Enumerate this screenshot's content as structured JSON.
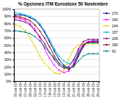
{
  "chart_data": {
    "type": "line",
    "title": "% Opciones ITM Eurostoxx 50 Noviembre",
    "categories": [
      "05-oct-09",
      "06-oct-09",
      "07-oct-09",
      "08-oct-09",
      "09-oct-09",
      "12-oct-09",
      "13-oct-09",
      "14-oct-09",
      "15-oct-09",
      "16-oct-09",
      "19-oct-09",
      "20-oct-09",
      "21-oct-09",
      "22-oct-09",
      "23-oct-09",
      "26-oct-09",
      "27-oct-09",
      "28-oct-09"
    ],
    "series": [
      {
        "name": "270",
        "color": "#000080",
        "marker": "circle",
        "values": [
          92,
          92,
          91,
          88,
          85,
          78,
          68,
          55,
          42,
          30,
          22,
          18,
          20,
          35,
          48,
          55,
          56,
          56
        ]
      },
      {
        "name": "163",
        "color": "#ff00ff",
        "marker": "circle",
        "values": [
          88,
          87,
          85,
          80,
          72,
          60,
          45,
          32,
          22,
          15,
          12,
          14,
          25,
          42,
          52,
          55,
          55,
          55
        ]
      },
      {
        "name": "244",
        "color": "#e0d000",
        "marker": "circle",
        "values": [
          78,
          76,
          70,
          60,
          48,
          35,
          25,
          18,
          12,
          10,
          15,
          30,
          45,
          50,
          52,
          52,
          52,
          52
        ]
      },
      {
        "name": "157",
        "color": "#00c0e0",
        "marker": "circle",
        "values": [
          95,
          94,
          92,
          90,
          86,
          80,
          70,
          58,
          45,
          35,
          28,
          24,
          28,
          40,
          50,
          53,
          53,
          53
        ]
      },
      {
        "name": "205",
        "color": "#800080",
        "marker": "circle",
        "values": [
          85,
          84,
          82,
          78,
          70,
          62,
          52,
          40,
          30,
          22,
          18,
          20,
          30,
          45,
          55,
          58,
          58,
          58
        ]
      },
      {
        "name": "290",
        "color": "#800000",
        "marker": "circle",
        "values": [
          90,
          89,
          87,
          84,
          78,
          70,
          60,
          48,
          35,
          25,
          20,
          16,
          22,
          38,
          50,
          54,
          54,
          54
        ]
      },
      {
        "name": "62",
        "color": "#008080",
        "marker": "circle",
        "values": [
          70,
          69,
          68,
          66,
          62,
          56,
          48,
          40,
          32,
          25,
          20,
          18,
          20,
          28,
          35,
          38,
          38,
          38
        ]
      }
    ],
    "ylim": [
      0,
      100
    ],
    "yticks": [
      {
        "value": 0,
        "label": "0%"
      },
      {
        "value": 10,
        "label": "10%"
      },
      {
        "value": 20,
        "label": "20%"
      },
      {
        "value": 30,
        "label": "30%"
      },
      {
        "value": 40,
        "label": "40%"
      },
      {
        "value": 50,
        "label": "50%"
      },
      {
        "value": 60,
        "label": "60%"
      },
      {
        "value": 70,
        "label": "70%"
      },
      {
        "value": 80,
        "label": "80%"
      },
      {
        "value": 90,
        "label": "90%"
      },
      {
        "value": 100,
        "label": "100%"
      }
    ],
    "grid": true,
    "legend": "right"
  }
}
